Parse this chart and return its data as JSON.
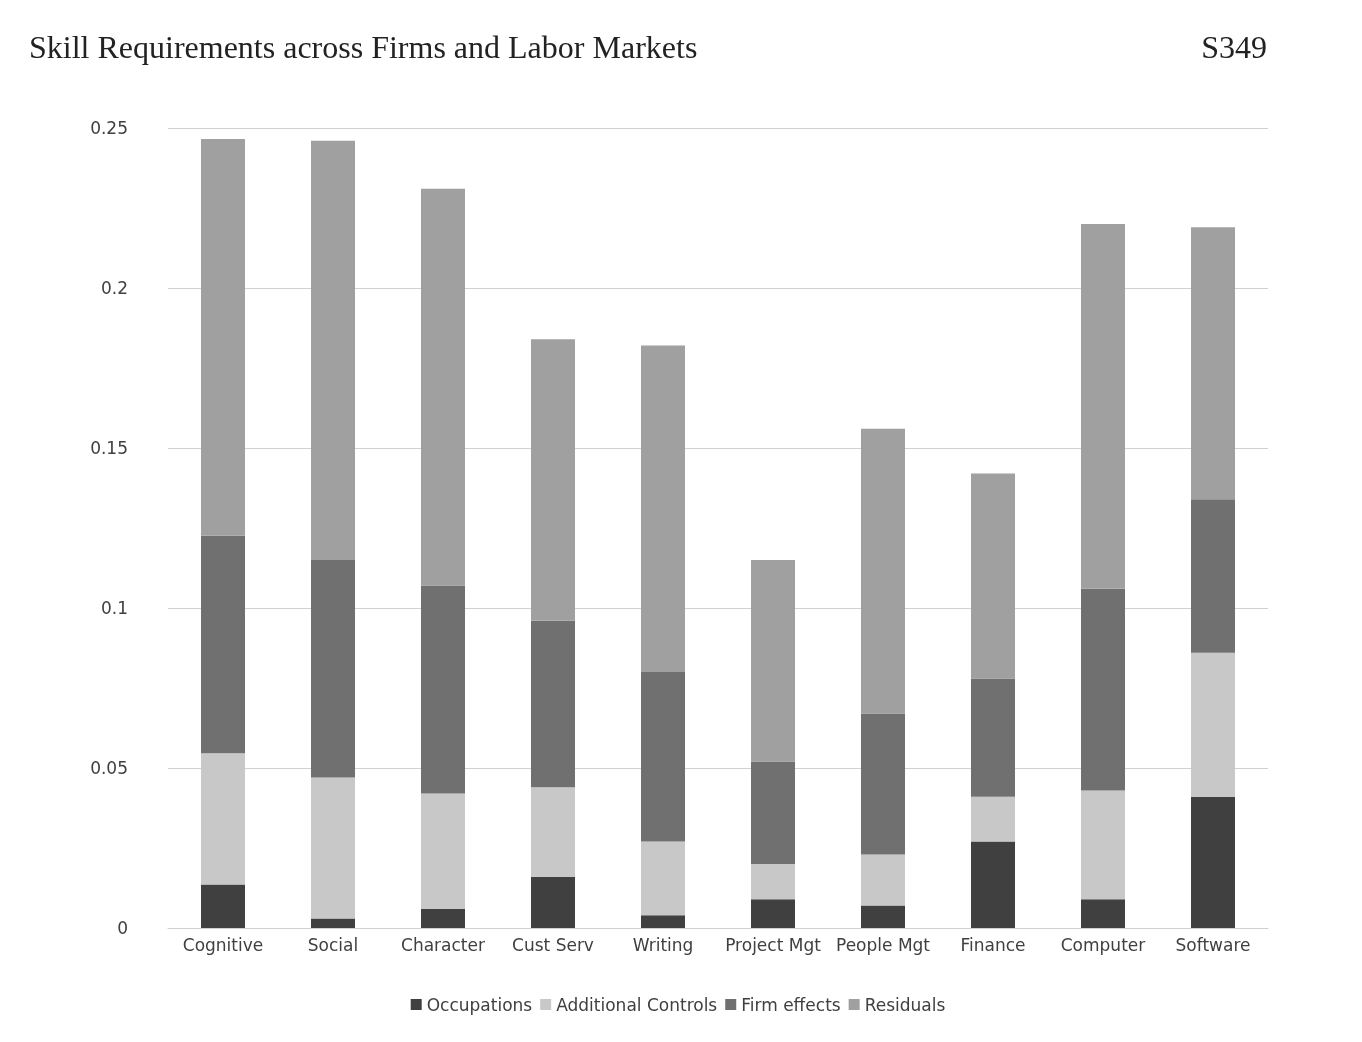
{
  "chart_data": {
    "type": "bar",
    "title": "Skill Requirements across Firms and Labor Markets",
    "annotations": [
      "S349"
    ],
    "categories": [
      "Cognitive",
      "Social",
      "Character",
      "Cust Serv",
      "Writing",
      "Project Mgt",
      "People Mgt",
      "Finance",
      "Computer",
      "Software"
    ],
    "stacked": true,
    "series": [
      {
        "name": "Occupations",
        "color": "#404040",
        "values": [
          0.0136,
          0.003,
          0.006,
          0.016,
          0.004,
          0.009,
          0.007,
          0.027,
          0.009,
          0.041
        ]
      },
      {
        "name": "Additional Controls",
        "color": "#c8c8c8",
        "values": [
          0.041,
          0.044,
          0.036,
          0.028,
          0.023,
          0.011,
          0.016,
          0.014,
          0.034,
          0.045
        ]
      },
      {
        "name": "Firm effects",
        "color": "#707070",
        "values": [
          0.068,
          0.068,
          0.065,
          0.052,
          0.053,
          0.032,
          0.044,
          0.037,
          0.063,
          0.048
        ]
      },
      {
        "name": "Residuals",
        "color": "#a0a0a0",
        "values": [
          0.124,
          0.131,
          0.124,
          0.088,
          0.102,
          0.063,
          0.089,
          0.064,
          0.114,
          0.085
        ]
      }
    ],
    "ylim": [
      0,
      0.25
    ],
    "yticks": [
      0,
      0.05,
      0.1,
      0.15,
      0.2,
      0.25
    ],
    "grid": "y",
    "legend": "bottom"
  }
}
